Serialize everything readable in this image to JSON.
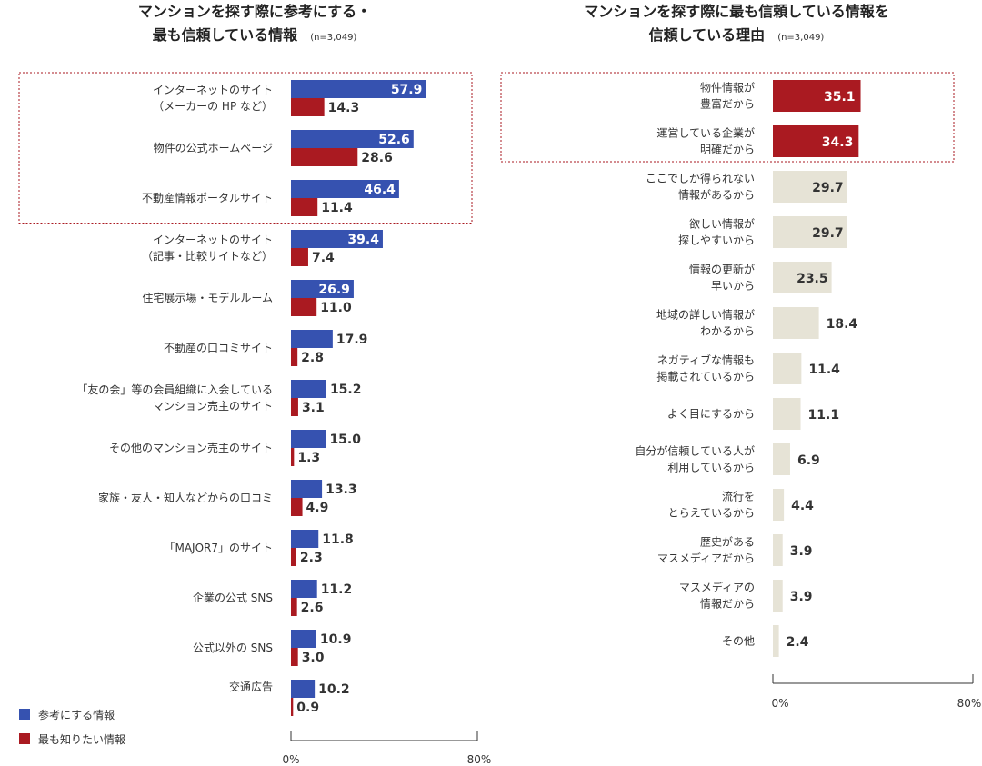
{
  "left_chart": {
    "title_line1": "マンションを探す際に参考にする・",
    "title_line2": "最も信頼している情報",
    "sample_note": "(n=3,049)",
    "axis_min_label": "0%",
    "axis_max_label": "80%",
    "legend": [
      {
        "label": "参考にする情報",
        "color": "#3652b0"
      },
      {
        "label": "最も知りたい情報",
        "color": "#aa1a21"
      }
    ]
  },
  "right_chart": {
    "title_line1": "マンションを探す際に最も信頼している情報を",
    "title_line2": "信頼している理由",
    "sample_note": "(n=3,049)",
    "axis_min_label": "0%",
    "axis_max_label": "80%"
  },
  "chart_data": [
    {
      "type": "bar",
      "orientation": "horizontal",
      "xlim": [
        0,
        80
      ],
      "categories": [
        [
          "インターネットのサイト",
          "（メーカーの HP など）"
        ],
        [
          "物件の公式ホームページ"
        ],
        [
          "不動産情報ポータルサイト"
        ],
        [
          "インターネットのサイト",
          "（記事・比較サイトなど）"
        ],
        [
          "住宅展示場・モデルルーム"
        ],
        [
          "不動産の口コミサイト"
        ],
        [
          "「友の会」等の会員組織に入会している",
          "マンション売主のサイト"
        ],
        [
          "その他のマンション売主のサイト"
        ],
        [
          "家族・友人・知人などからの口コミ"
        ],
        [
          "「MAJOR7」のサイト"
        ],
        [
          "企業の公式 SNS"
        ],
        [
          "公式以外の SNS"
        ],
        [
          "交通広告"
        ]
      ],
      "series": [
        {
          "name": "参考にする情報",
          "color": "#3652b0",
          "values": [
            57.9,
            52.6,
            46.4,
            39.4,
            26.9,
            17.9,
            15.2,
            15.0,
            13.3,
            11.8,
            11.2,
            10.9,
            10.2
          ]
        },
        {
          "name": "最も知りたい情報",
          "color": "#aa1a21",
          "values": [
            14.3,
            28.6,
            11.4,
            7.4,
            11.0,
            2.8,
            3.1,
            1.3,
            4.9,
            2.3,
            2.6,
            3.0,
            0.9
          ]
        }
      ],
      "highlight_first": 3,
      "value_labels": [
        [
          "57.9",
          "52.6",
          "46.4",
          "39.4",
          "26.9",
          "17.9",
          "15.2",
          "15.0",
          "13.3",
          "11.8",
          "11.2",
          "10.9",
          "10.2"
        ],
        [
          "14.3",
          "28.6",
          "11.4",
          "7.4",
          "11.0",
          "2.8",
          "3.1",
          "1.3",
          "4.9",
          "2.3",
          "2.6",
          "3.0",
          "0.9"
        ]
      ]
    },
    {
      "type": "bar",
      "orientation": "horizontal",
      "xlim": [
        0,
        80
      ],
      "categories": [
        [
          "物件情報が",
          "豊富だから"
        ],
        [
          "運営している企業が",
          "明確だから"
        ],
        [
          "ここでしか得られない",
          "情報があるから"
        ],
        [
          "欲しい情報が",
          "探しやすいから"
        ],
        [
          "情報の更新が",
          "早いから"
        ],
        [
          "地域の詳しい情報が",
          "わかるから"
        ],
        [
          "ネガティブな情報も",
          "掲載されているから"
        ],
        [
          "よく目にするから"
        ],
        [
          "自分が信頼している人が",
          "利用しているから"
        ],
        [
          "流行を",
          "とらえているから"
        ],
        [
          "歴史がある",
          "マスメディアだから"
        ],
        [
          "マスメディアの",
          "情報だから"
        ],
        [
          "その他"
        ]
      ],
      "values": [
        35.1,
        34.3,
        29.7,
        29.7,
        23.5,
        18.4,
        11.4,
        11.1,
        6.9,
        4.4,
        3.9,
        3.9,
        2.4
      ],
      "value_labels": [
        "35.1",
        "34.3",
        "29.7",
        "29.7",
        "23.5",
        "18.4",
        "11.4",
        "11.1",
        "6.9",
        "4.4",
        "3.9",
        "3.9",
        "2.4"
      ],
      "highlight_first": 2,
      "highlight_color": "#aa1a21",
      "base_color": "#e6e3d6"
    }
  ]
}
